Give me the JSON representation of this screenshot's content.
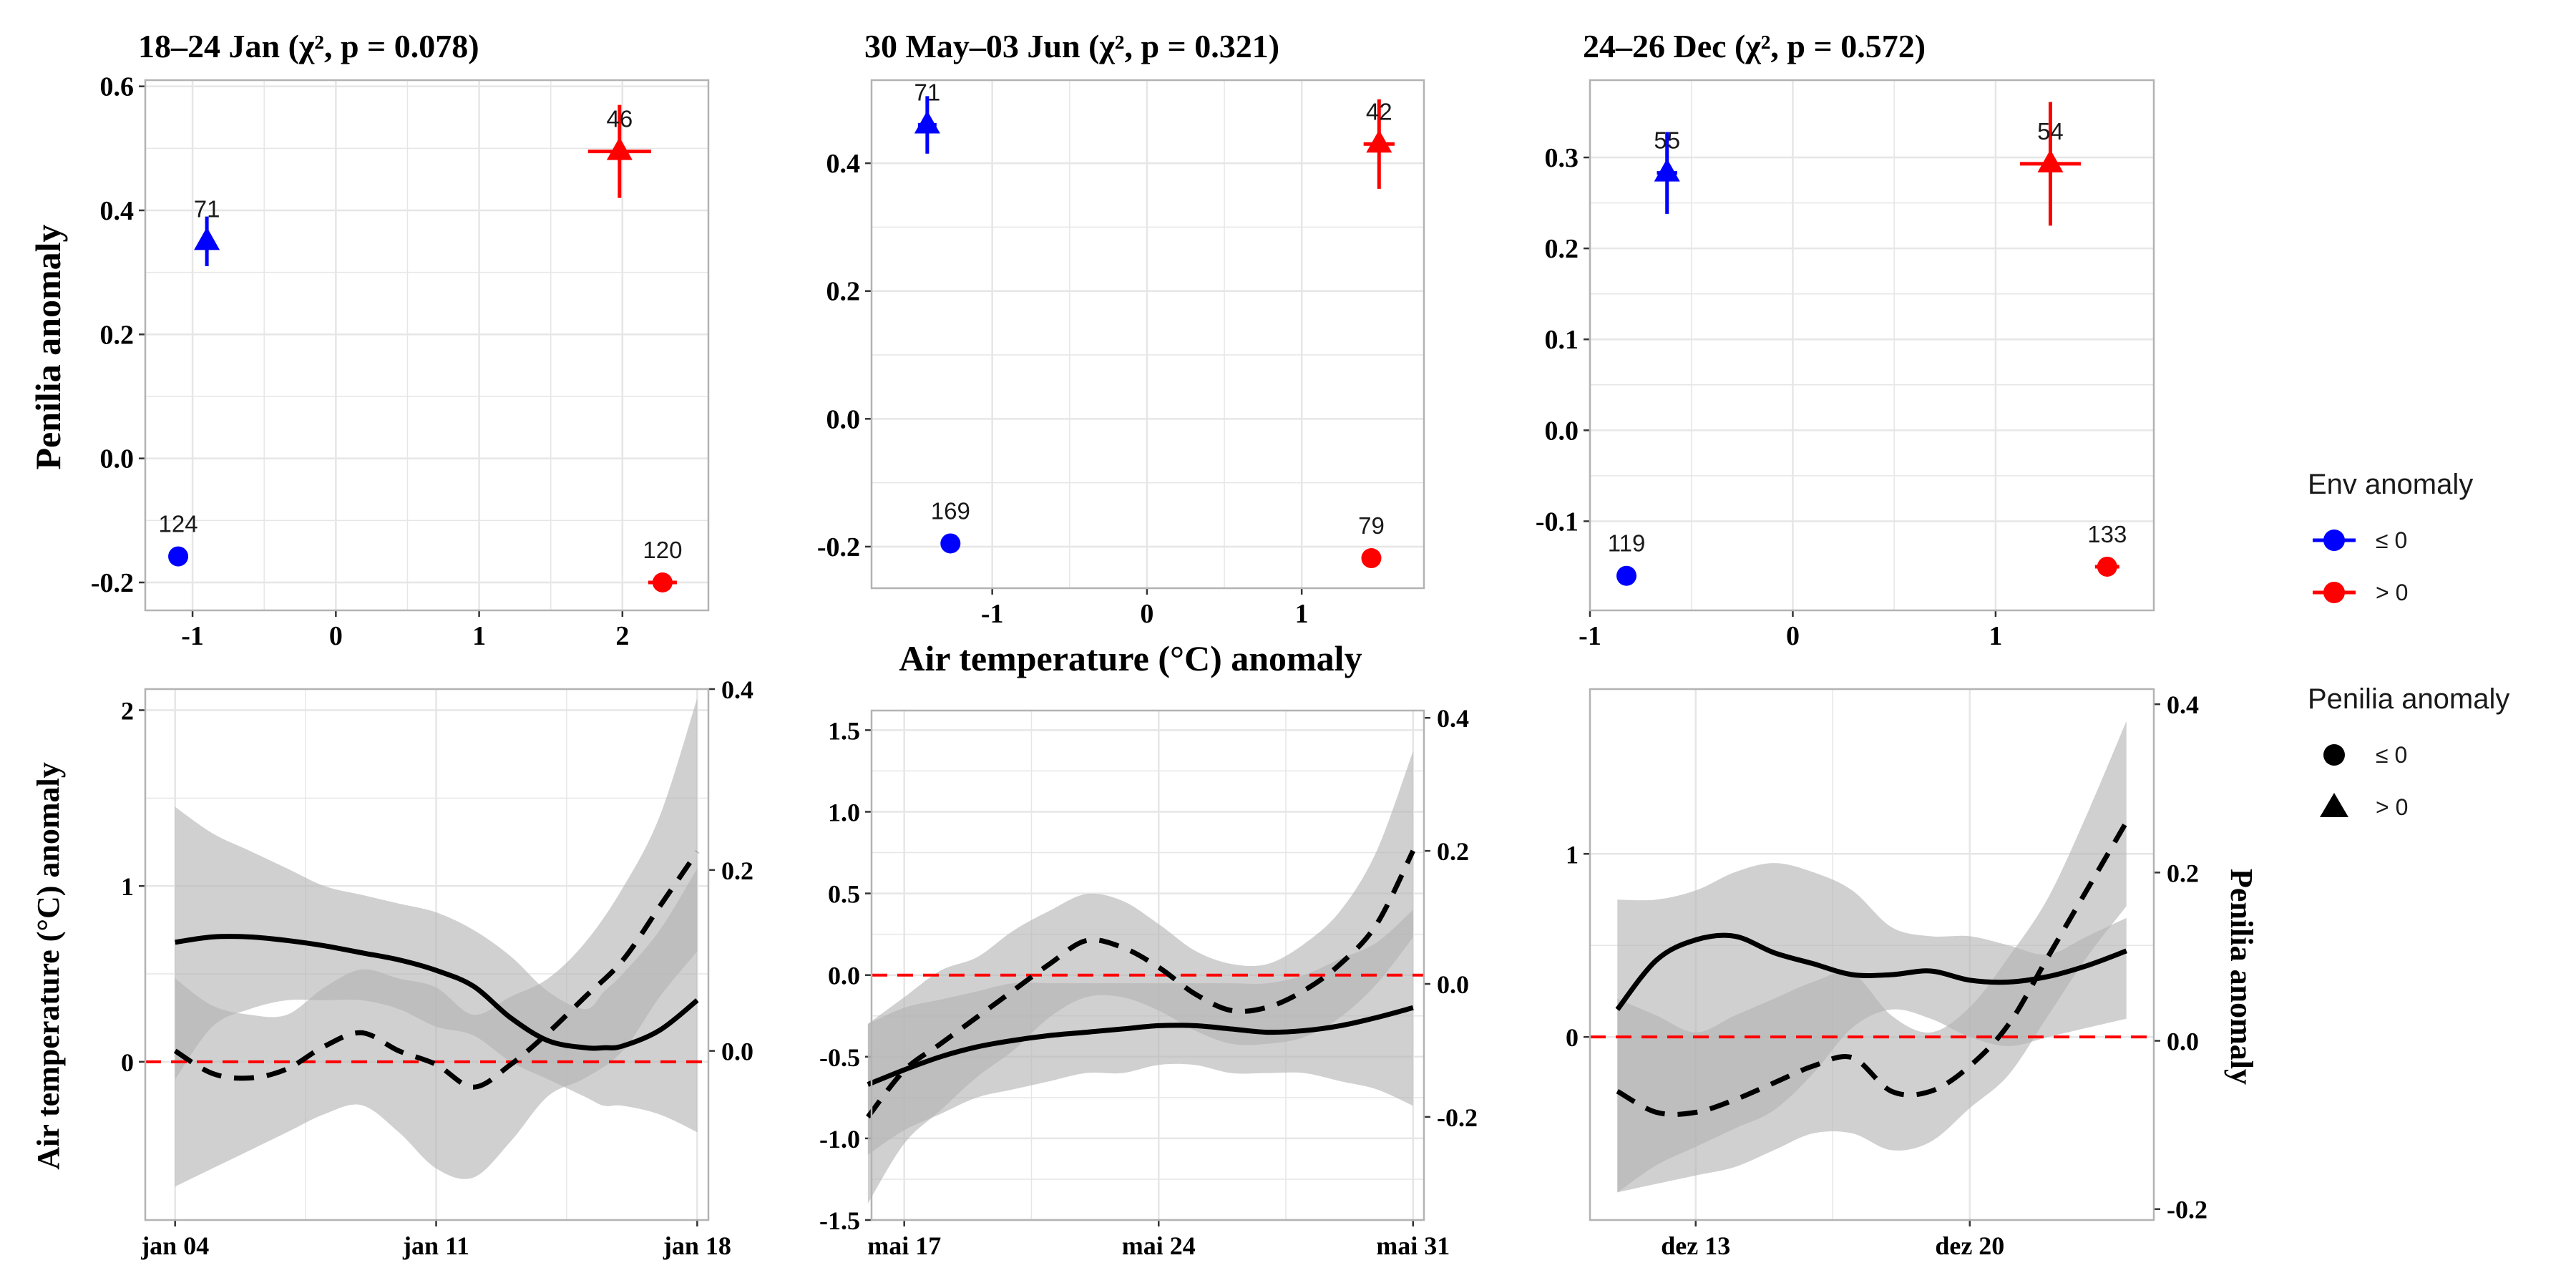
{
  "colors": {
    "low": "#0000FF",
    "high": "#FF0000",
    "zero_line": "#FF0000",
    "smooth": "#000000",
    "ribbon": "#B3B3B3",
    "grid": "#E6E6E6",
    "panel_border": "#B3B3B3"
  },
  "labels": {
    "top_ylabel": "Penilia anomaly",
    "top_xlabel": "Air temperature (°C) anomaly",
    "bottom_left_ylabel": "Air temperature (°C) anomaly",
    "bottom_right_ylabel": "Penilia anomaly"
  },
  "legend": {
    "env_title": "Env anomaly",
    "env_items": [
      {
        "label": "≤ 0",
        "color": "#0000FF"
      },
      {
        "label": "> 0",
        "color": "#FF0000"
      }
    ],
    "penilia_title": "Penilia anomaly",
    "penilia_items": [
      {
        "label": "≤ 0",
        "shape": "circle"
      },
      {
        "label": "> 0",
        "shape": "triangle"
      }
    ]
  },
  "chart_data": [
    {
      "type": "scatter",
      "title": "18–24 Jan (χ², p = 0.078)",
      "xlim": [
        -1.33,
        2.6
      ],
      "ylim": [
        -0.245,
        0.61
      ],
      "xticks": [
        -1,
        0,
        1,
        2
      ],
      "yticks": [
        -0.2,
        0.0,
        0.2,
        0.4,
        0.6
      ],
      "ytick_labels": [
        "-0.2",
        "0.0",
        "0.2",
        "0.4",
        "0.6"
      ],
      "points": [
        {
          "x": -1.1,
          "y": -0.158,
          "n": "124",
          "env": "low",
          "shape": "circle",
          "xerr": 0,
          "yerr": 0
        },
        {
          "x": -0.9,
          "y": 0.35,
          "n": "71",
          "env": "low",
          "shape": "triangle",
          "xerr": 0.05,
          "yerr": 0.04
        },
        {
          "x": 1.98,
          "y": 0.495,
          "n": "46",
          "env": "high",
          "shape": "triangle",
          "xerr": 0.22,
          "yerr": 0.075
        },
        {
          "x": 2.28,
          "y": -0.2,
          "n": "120",
          "env": "high",
          "shape": "circle",
          "xerr": 0.1,
          "yerr": 0
        }
      ]
    },
    {
      "type": "scatter",
      "title": "30 May–03 Jun (χ², p = 0.321)",
      "xlim": [
        -1.78,
        1.79
      ],
      "ylim": [
        -0.265,
        0.53
      ],
      "xticks": [
        -1,
        0,
        1
      ],
      "yticks": [
        -0.2,
        0.0,
        0.2,
        0.4
      ],
      "ytick_labels": [
        "-0.2",
        "0.0",
        "0.2",
        "0.4"
      ],
      "points": [
        {
          "x": -1.27,
          "y": -0.195,
          "n": "169",
          "env": "low",
          "shape": "circle",
          "xerr": 0,
          "yerr": 0
        },
        {
          "x": -1.42,
          "y": 0.46,
          "n": "71",
          "env": "low",
          "shape": "triangle",
          "xerr": 0.06,
          "yerr": 0.045
        },
        {
          "x": 1.5,
          "y": 0.43,
          "n": "42",
          "env": "high",
          "shape": "triangle",
          "xerr": 0.1,
          "yerr": 0.07
        },
        {
          "x": 1.45,
          "y": -0.218,
          "n": "79",
          "env": "high",
          "shape": "circle",
          "xerr": 0.06,
          "yerr": 0
        }
      ]
    },
    {
      "type": "scatter",
      "title": "24–26 Dec (χ², p = 0.572)",
      "xlim": [
        -1.0,
        1.78
      ],
      "ylim": [
        -0.198,
        0.385
      ],
      "xticks": [
        -1,
        0,
        1
      ],
      "yticks": [
        -0.1,
        0.0,
        0.1,
        0.2,
        0.3
      ],
      "ytick_labels": [
        "-0.1",
        "0.0",
        "0.1",
        "0.2",
        "0.3"
      ],
      "points": [
        {
          "x": -0.82,
          "y": -0.16,
          "n": "119",
          "env": "low",
          "shape": "circle",
          "xerr": 0,
          "yerr": 0
        },
        {
          "x": -0.62,
          "y": 0.283,
          "n": "55",
          "env": "low",
          "shape": "triangle",
          "xerr": 0.05,
          "yerr": 0.045
        },
        {
          "x": 1.27,
          "y": 0.293,
          "n": "54",
          "env": "high",
          "shape": "triangle",
          "xerr": 0.15,
          "yerr": 0.068
        },
        {
          "x": 1.55,
          "y": -0.15,
          "n": "133",
          "env": "high",
          "shape": "circle",
          "xerr": 0.06,
          "yerr": 0
        }
      ]
    },
    {
      "type": "line",
      "xlim": [
        -0.8,
        14.3
      ],
      "ylim": [
        -0.9,
        2.12
      ],
      "ylim_right": [
        -0.187,
        0.4
      ],
      "left_ticks": [
        0,
        1,
        2
      ],
      "left_tick_labels": [
        "0",
        "1",
        "2"
      ],
      "right_ticks": [
        0.0,
        0.2,
        0.4
      ],
      "right_tick_labels": [
        "0.0",
        "0.2",
        "0.4"
      ],
      "xticks": [
        0,
        7,
        14
      ],
      "xtick_labels": [
        "jan 04",
        "jan 11",
        "jan 18"
      ],
      "zero_line": 0,
      "series": [
        {
          "kind": "air_temperature",
          "style": "solid",
          "axis": "left",
          "x": [
            0,
            1,
            2,
            3,
            4,
            5,
            6,
            7,
            8,
            9,
            10,
            11,
            11.5,
            12,
            13,
            14
          ],
          "y": [
            0.68,
            0.71,
            0.71,
            0.69,
            0.66,
            0.62,
            0.58,
            0.52,
            0.43,
            0.25,
            0.12,
            0.08,
            0.08,
            0.09,
            0.18,
            0.35
          ],
          "lower": [
            -0.1,
            0.2,
            0.3,
            0.35,
            0.35,
            0.35,
            0.3,
            0.2,
            0.15,
            0.0,
            -0.1,
            -0.2,
            -0.25,
            -0.25,
            -0.3,
            -0.4
          ],
          "upper": [
            1.45,
            1.3,
            1.2,
            1.1,
            1.0,
            0.95,
            0.9,
            0.85,
            0.75,
            0.6,
            0.4,
            0.3,
            0.4,
            0.5,
            0.75,
            1.1
          ]
        },
        {
          "kind": "penilia",
          "style": "dashed",
          "axis": "right",
          "x": [
            0,
            1,
            2,
            3,
            4,
            5,
            6,
            7,
            8,
            9,
            10,
            11,
            12,
            13,
            14
          ],
          "y": [
            0.0,
            -0.025,
            -0.03,
            -0.02,
            0.005,
            0.02,
            0.0,
            -0.015,
            -0.04,
            -0.015,
            0.02,
            0.06,
            0.1,
            0.16,
            0.22
          ],
          "lower": [
            -0.15,
            -0.13,
            -0.11,
            -0.09,
            -0.07,
            -0.06,
            -0.09,
            -0.13,
            -0.14,
            -0.1,
            -0.05,
            -0.03,
            0.0,
            0.06,
            0.11
          ],
          "upper": [
            0.08,
            0.05,
            0.04,
            0.04,
            0.07,
            0.09,
            0.08,
            0.07,
            0.04,
            0.06,
            0.08,
            0.12,
            0.18,
            0.26,
            0.39
          ]
        }
      ]
    },
    {
      "type": "line",
      "xlim": [
        -0.9,
        14.3
      ],
      "ylim": [
        -1.5,
        1.62
      ],
      "ylim_right": [
        -0.355,
        0.411
      ],
      "left_ticks": [
        -1.5,
        -1.0,
        -0.5,
        0.0,
        0.5,
        1.0,
        1.5
      ],
      "left_tick_labels": [
        "-1.5",
        "-1.0",
        "-0.5",
        "0.0",
        "0.5",
        "1.0",
        "1.5"
      ],
      "right_ticks": [
        -0.2,
        0.0,
        0.2,
        0.4
      ],
      "right_tick_labels": [
        "-0.2",
        "0.0",
        "0.2",
        "0.4"
      ],
      "xticks": [
        0,
        7,
        14
      ],
      "xtick_labels": [
        "mai 17",
        "mai 24",
        "mai 31"
      ],
      "zero_line": 0,
      "series": [
        {
          "kind": "air_temperature",
          "style": "solid",
          "axis": "left",
          "x": [
            -1,
            0,
            1,
            2,
            3,
            4,
            5,
            6,
            7,
            8,
            9,
            10,
            11,
            12,
            13,
            14
          ],
          "y": [
            -0.67,
            -0.58,
            -0.5,
            -0.44,
            -0.4,
            -0.37,
            -0.35,
            -0.33,
            -0.31,
            -0.31,
            -0.33,
            -0.35,
            -0.34,
            -0.31,
            -0.26,
            -0.2
          ],
          "lower": [
            -1.1,
            -0.95,
            -0.85,
            -0.75,
            -0.7,
            -0.65,
            -0.6,
            -0.6,
            -0.55,
            -0.55,
            -0.6,
            -0.6,
            -0.6,
            -0.65,
            -0.7,
            -0.8
          ],
          "upper": [
            -0.3,
            -0.2,
            -0.15,
            -0.1,
            -0.05,
            -0.05,
            -0.05,
            -0.05,
            -0.05,
            -0.05,
            -0.05,
            -0.05,
            0.0,
            0.1,
            0.2,
            0.4
          ]
        },
        {
          "kind": "penilia",
          "style": "dashed",
          "axis": "right",
          "x": [
            -1,
            0,
            1,
            2,
            3,
            4,
            5,
            6,
            7,
            8,
            9,
            10,
            11,
            12,
            13,
            14
          ],
          "y": [
            -0.2,
            -0.13,
            -0.09,
            -0.05,
            -0.01,
            0.03,
            0.065,
            0.055,
            0.025,
            -0.015,
            -0.04,
            -0.035,
            -0.01,
            0.03,
            0.09,
            0.2
          ],
          "lower": [
            -0.33,
            -0.24,
            -0.19,
            -0.14,
            -0.1,
            -0.05,
            -0.02,
            -0.02,
            -0.04,
            -0.07,
            -0.09,
            -0.09,
            -0.08,
            -0.05,
            0.0,
            0.07
          ],
          "upper": [
            -0.06,
            -0.02,
            0.02,
            0.04,
            0.08,
            0.11,
            0.135,
            0.125,
            0.09,
            0.05,
            0.03,
            0.03,
            0.06,
            0.11,
            0.2,
            0.35
          ]
        }
      ]
    },
    {
      "type": "line",
      "xlim": [
        -2.7,
        11.7
      ],
      "ylim": [
        -1.0,
        1.9
      ],
      "ylim_right": [
        -0.213,
        0.418
      ],
      "left_ticks": [
        0,
        1
      ],
      "left_tick_labels": [
        "0",
        "1"
      ],
      "right_ticks": [
        -0.2,
        0.0,
        0.2,
        0.4
      ],
      "right_tick_labels": [
        "-0.2",
        "0.0",
        "0.2",
        "0.4"
      ],
      "xticks": [
        0,
        7
      ],
      "xtick_labels": [
        "dez 13",
        "dez 20"
      ],
      "zero_line": 0,
      "series": [
        {
          "kind": "air_temperature",
          "style": "solid",
          "axis": "left",
          "x": [
            -2,
            -1,
            0,
            1,
            2,
            3,
            4,
            5,
            6,
            7,
            8,
            9,
            10,
            11
          ],
          "y": [
            0.15,
            0.42,
            0.53,
            0.55,
            0.46,
            0.4,
            0.34,
            0.34,
            0.36,
            0.31,
            0.3,
            0.33,
            0.39,
            0.47
          ],
          "lower": [
            -0.85,
            -0.7,
            -0.6,
            -0.5,
            -0.4,
            -0.2,
            0.05,
            0.15,
            0.1,
            0.0,
            -0.05,
            0.0,
            0.05,
            0.1
          ],
          "upper": [
            0.75,
            0.75,
            0.8,
            0.9,
            0.95,
            0.9,
            0.8,
            0.6,
            0.55,
            0.55,
            0.5,
            0.45,
            0.55,
            0.65
          ]
        },
        {
          "kind": "penilia",
          "style": "dashed",
          "axis": "right",
          "x": [
            -2,
            -1,
            0,
            1,
            2,
            3,
            4,
            5,
            6,
            7,
            8,
            9,
            10,
            11
          ],
          "y": [
            -0.06,
            -0.085,
            -0.085,
            -0.07,
            -0.05,
            -0.03,
            -0.02,
            -0.06,
            -0.06,
            -0.03,
            0.02,
            0.1,
            0.18,
            0.26
          ],
          "lower": [
            -0.18,
            -0.17,
            -0.16,
            -0.15,
            -0.13,
            -0.11,
            -0.11,
            -0.13,
            -0.12,
            -0.08,
            -0.04,
            0.03,
            0.1,
            0.16
          ],
          "upper": [
            0.05,
            0.03,
            0.01,
            0.03,
            0.05,
            0.07,
            0.08,
            0.03,
            0.01,
            0.04,
            0.1,
            0.17,
            0.27,
            0.38
          ]
        }
      ]
    }
  ]
}
